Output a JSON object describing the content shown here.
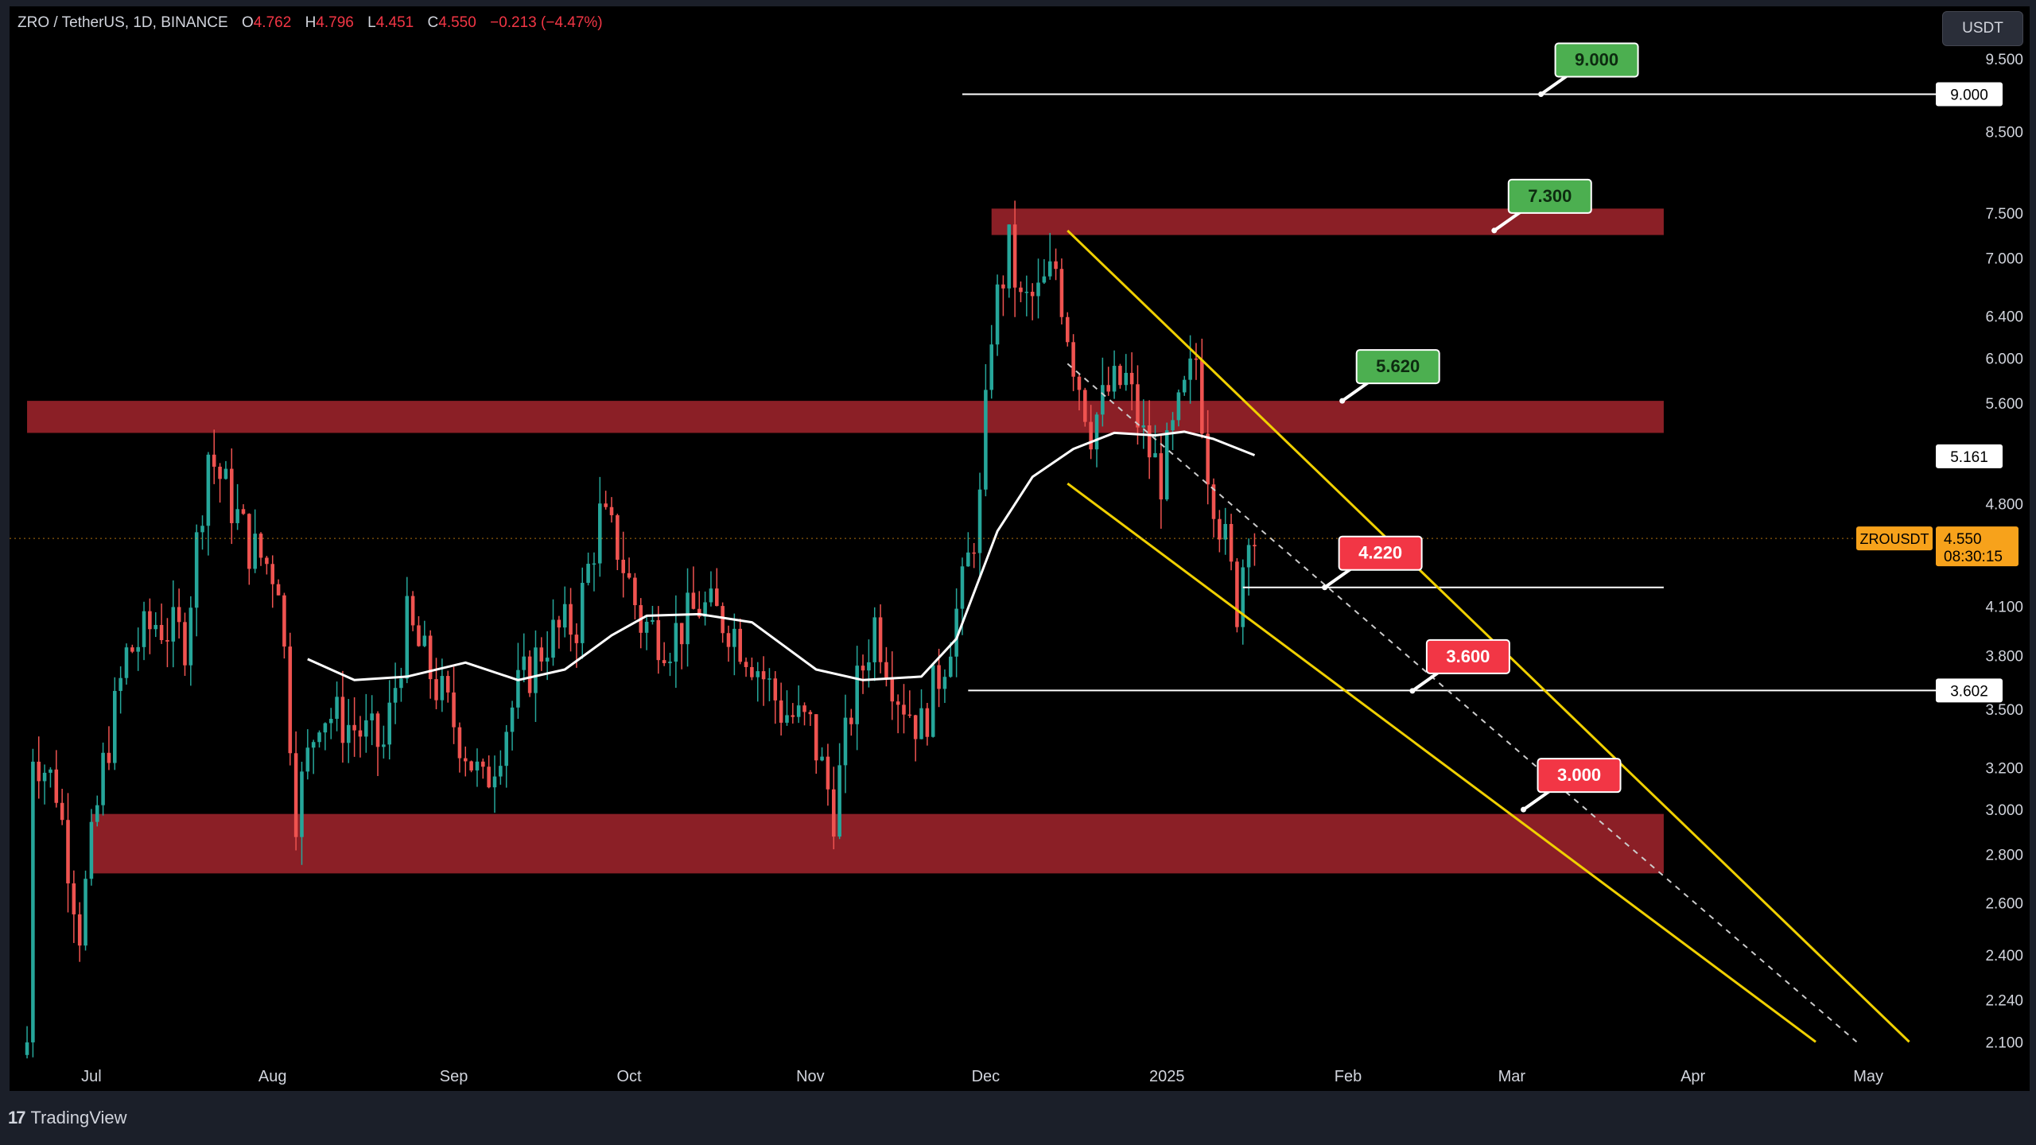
{
  "legend": {
    "title": "ZRO / TetherUS, 1D, BINANCE",
    "open_label": "O",
    "open": "4.762",
    "high_label": "H",
    "high": "4.796",
    "low_label": "L",
    "low": "4.451",
    "close_label": "C",
    "close": "4.550",
    "change": "−0.213 (−4.47%)"
  },
  "toolbar": {
    "currency": "USDT"
  },
  "footer": {
    "brand": "TradingView"
  },
  "colors": {
    "up": "#26a69a",
    "down": "#ef5350",
    "zone": "#8b1f26",
    "channel": "#f0d000",
    "ma": "#ffffff",
    "target_green": "#4caf50",
    "target_red": "#f23645",
    "last_price": "#f7a21b",
    "axis_text": "#d1d4dc"
  },
  "chart_data": {
    "type": "candlestick",
    "symbol": "ZROUSDT",
    "timeframe": "1D",
    "y_scale": "log",
    "ylim": [
      2.05,
      10.3
    ],
    "x_range": [
      "2024-06-17",
      "2025-05-12"
    ],
    "y_ticks": [
      "9.500",
      "9.000",
      "8.500",
      "7.500",
      "7.000",
      "6.400",
      "6.000",
      "5.600",
      "5.161",
      "4.800",
      "4.550",
      "4.100",
      "3.800",
      "3.602",
      "3.500",
      "3.200",
      "3.000",
      "2.800",
      "2.600",
      "2.400",
      "2.240",
      "2.100"
    ],
    "x_ticks": [
      {
        "label": "Jul",
        "date": "2024-07-01"
      },
      {
        "label": "Aug",
        "date": "2024-08-01"
      },
      {
        "label": "Sep",
        "date": "2024-09-01"
      },
      {
        "label": "Oct",
        "date": "2024-10-01"
      },
      {
        "label": "Nov",
        "date": "2024-11-01"
      },
      {
        "label": "Dec",
        "date": "2024-12-01"
      },
      {
        "label": "2025",
        "date": "2025-01-01"
      },
      {
        "label": "Feb",
        "date": "2025-02-01"
      },
      {
        "label": "Mar",
        "date": "2025-03-01"
      },
      {
        "label": "Apr",
        "date": "2025-04-01"
      },
      {
        "label": "May",
        "date": "2025-05-01"
      }
    ],
    "price_path": [
      [
        "2024-06-20",
        2.1
      ],
      [
        "2024-06-21",
        3.3
      ],
      [
        "2024-06-25",
        3.1
      ],
      [
        "2024-06-29",
        2.5
      ],
      [
        "2024-07-03",
        3.2
      ],
      [
        "2024-07-07",
        3.8
      ],
      [
        "2024-07-12",
        4.0
      ],
      [
        "2024-07-17",
        3.9
      ],
      [
        "2024-07-21",
        5.2
      ],
      [
        "2024-07-24",
        4.9
      ],
      [
        "2024-07-28",
        4.5
      ],
      [
        "2024-08-02",
        4.3
      ],
      [
        "2024-08-05",
        3.0
      ],
      [
        "2024-08-09",
        3.5
      ],
      [
        "2024-08-15",
        3.4
      ],
      [
        "2024-08-20",
        3.3
      ],
      [
        "2024-08-24",
        4.0
      ],
      [
        "2024-08-28",
        3.7
      ],
      [
        "2024-09-03",
        3.3
      ],
      [
        "2024-09-06",
        3.1
      ],
      [
        "2024-09-12",
        3.6
      ],
      [
        "2024-09-17",
        3.9
      ],
      [
        "2024-09-22",
        4.0
      ],
      [
        "2024-09-26",
        4.7
      ],
      [
        "2024-09-29",
        4.5
      ],
      [
        "2024-10-03",
        4.0
      ],
      [
        "2024-10-08",
        3.9
      ],
      [
        "2024-10-13",
        4.1
      ],
      [
        "2024-10-18",
        4.0
      ],
      [
        "2024-10-22",
        3.8
      ],
      [
        "2024-10-27",
        3.5
      ],
      [
        "2024-11-01",
        3.4
      ],
      [
        "2024-11-05",
        3.0
      ],
      [
        "2024-11-08",
        3.5
      ],
      [
        "2024-11-12",
        4.0
      ],
      [
        "2024-11-16",
        3.6
      ],
      [
        "2024-11-20",
        3.4
      ],
      [
        "2024-11-24",
        3.8
      ],
      [
        "2024-11-27",
        4.2
      ],
      [
        "2024-11-30",
        4.8
      ],
      [
        "2024-12-02",
        6.3
      ],
      [
        "2024-12-05",
        7.1
      ],
      [
        "2024-12-07",
        6.5
      ],
      [
        "2024-12-10",
        6.6
      ],
      [
        "2024-12-13",
        6.9
      ],
      [
        "2024-12-16",
        6.0
      ],
      [
        "2024-12-19",
        5.4
      ],
      [
        "2024-12-22",
        5.7
      ],
      [
        "2024-12-25",
        5.8
      ],
      [
        "2024-12-28",
        5.3
      ],
      [
        "2024-12-31",
        5.0
      ],
      [
        "2025-01-03",
        5.5
      ],
      [
        "2025-01-06",
        6.0
      ],
      [
        "2025-01-08",
        5.1
      ],
      [
        "2025-01-11",
        4.5
      ],
      [
        "2025-01-13",
        4.1
      ],
      [
        "2025-01-15",
        4.7
      ],
      [
        "2025-01-16",
        4.55
      ]
    ],
    "moving_average": [
      [
        "2024-08-07",
        3.78
      ],
      [
        "2024-08-15",
        3.66
      ],
      [
        "2024-08-24",
        3.68
      ],
      [
        "2024-09-03",
        3.76
      ],
      [
        "2024-09-12",
        3.66
      ],
      [
        "2024-09-20",
        3.72
      ],
      [
        "2024-09-28",
        3.92
      ],
      [
        "2024-10-04",
        4.04
      ],
      [
        "2024-10-13",
        4.05
      ],
      [
        "2024-10-22",
        4.0
      ],
      [
        "2024-11-02",
        3.72
      ],
      [
        "2024-11-10",
        3.66
      ],
      [
        "2024-11-20",
        3.68
      ],
      [
        "2024-11-26",
        3.9
      ],
      [
        "2024-12-03",
        4.6
      ],
      [
        "2024-12-09",
        5.0
      ],
      [
        "2024-12-16",
        5.22
      ],
      [
        "2024-12-23",
        5.35
      ],
      [
        "2024-12-30",
        5.33
      ],
      [
        "2025-01-04",
        5.36
      ],
      [
        "2025-01-09",
        5.3
      ],
      [
        "2025-01-16",
        5.17
      ]
    ],
    "zones": [
      {
        "from": "2024-06-20",
        "to": "2025-03-27",
        "low": 5.35,
        "high": 5.62
      },
      {
        "from": "2024-12-02",
        "to": "2025-03-27",
        "low": 7.25,
        "high": 7.55
      },
      {
        "from": "2024-07-01",
        "to": "2025-03-27",
        "low": 2.72,
        "high": 2.98
      }
    ],
    "horizontal_lines": [
      {
        "price": 9.0,
        "from": "2024-11-27",
        "to": "2025-05-13"
      },
      {
        "price": 4.22,
        "from": "2025-01-14",
        "to": "2025-03-27"
      },
      {
        "price": 3.602,
        "from": "2024-11-28",
        "to": "2025-05-13"
      }
    ],
    "channel": {
      "upper": [
        [
          "2024-12-15",
          7.3
        ],
        [
          "2025-05-08",
          2.1
        ]
      ],
      "lower": [
        [
          "2024-12-15",
          4.95
        ],
        [
          "2025-04-22",
          2.1
        ]
      ],
      "median": [
        [
          "2024-12-15",
          5.95
        ],
        [
          "2025-04-29",
          2.1
        ]
      ]
    },
    "targets": [
      {
        "label": "9.000",
        "price": 9.0,
        "date": "2025-03-06",
        "kind": "green"
      },
      {
        "label": "7.300",
        "price": 7.3,
        "date": "2025-02-26",
        "kind": "green"
      },
      {
        "label": "5.620",
        "price": 5.62,
        "date": "2025-01-31",
        "kind": "green"
      },
      {
        "label": "4.220",
        "price": 4.22,
        "date": "2025-01-28",
        "kind": "red"
      },
      {
        "label": "3.600",
        "price": 3.6,
        "date": "2025-02-12",
        "kind": "red"
      },
      {
        "label": "3.000",
        "price": 3.0,
        "date": "2025-03-03",
        "kind": "red"
      }
    ],
    "price_labels": [
      {
        "label": "9.000",
        "price": 9.0
      },
      {
        "label": "5.161",
        "price": 5.161
      },
      {
        "label": "3.602",
        "price": 3.602
      }
    ],
    "last_price": {
      "price": 4.55,
      "label": "4.550",
      "symbol": "ZROUSDT",
      "countdown": "08:30:15"
    }
  }
}
